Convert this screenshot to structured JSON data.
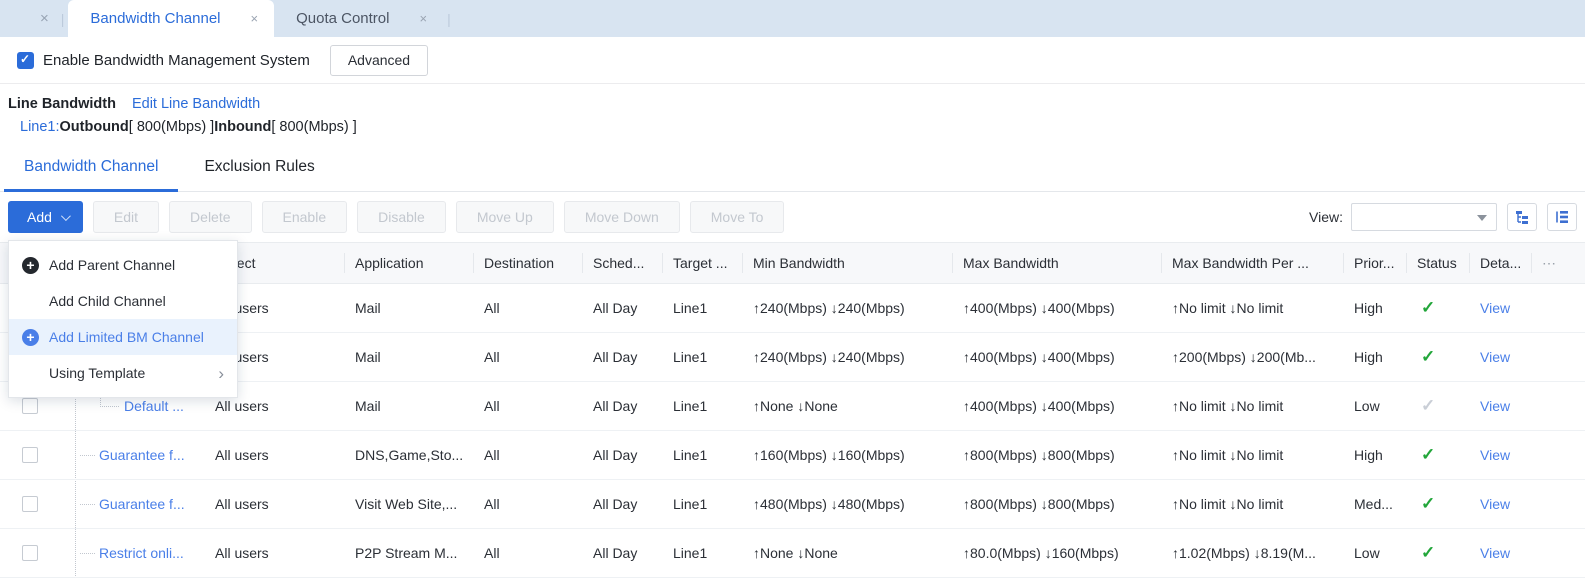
{
  "window_tabs": {
    "close_icon": "×",
    "separator": "|",
    "tabs": [
      {
        "label": "Bandwidth Channel",
        "active": true
      },
      {
        "label": "Quota Control",
        "active": false
      }
    ]
  },
  "header": {
    "enable_label": "Enable Bandwidth Management System",
    "enable_checked": true,
    "advanced_button": "Advanced",
    "line_bandwidth_title": "Line Bandwidth",
    "edit_line_bandwidth_link": "Edit Line Bandwidth",
    "line": {
      "name": "Line1:",
      "outbound_label": "Outbound",
      "outbound_value": "[ 800(Mbps) ]",
      "inbound_label": "Inbound",
      "inbound_value": "[ 800(Mbps) ]"
    }
  },
  "section_tabs": [
    {
      "label": "Bandwidth Channel",
      "active": true
    },
    {
      "label": "Exclusion Rules",
      "active": false
    }
  ],
  "toolbar": {
    "add_label": "Add",
    "buttons": [
      "Edit",
      "Delete",
      "Enable",
      "Disable",
      "Move Up",
      "Move Down",
      "Move To"
    ],
    "view_label": "View:",
    "view_value": ""
  },
  "add_menu": {
    "items": [
      {
        "label": "Add Parent Channel",
        "icon": "plus-circle-dark",
        "highlighted": false,
        "submenu": false
      },
      {
        "label": "Add Child Channel",
        "icon": null,
        "highlighted": false,
        "submenu": false
      },
      {
        "label": "Add Limited BM Channel",
        "icon": "plus-circle-blue",
        "highlighted": true,
        "submenu": false
      },
      {
        "label": "Using Template",
        "icon": null,
        "highlighted": false,
        "submenu": true
      }
    ],
    "submenu_arrow": "›"
  },
  "table": {
    "columns": [
      {
        "key": "select",
        "label": ""
      },
      {
        "key": "name",
        "label": ""
      },
      {
        "key": "object",
        "label": "Object"
      },
      {
        "key": "application",
        "label": "Application"
      },
      {
        "key": "destination",
        "label": "Destination"
      },
      {
        "key": "schedule",
        "label": "Sched..."
      },
      {
        "key": "target",
        "label": "Target ..."
      },
      {
        "key": "min",
        "label": "Min Bandwidth"
      },
      {
        "key": "max",
        "label": "Max Bandwidth"
      },
      {
        "key": "per_user",
        "label": "Max Bandwidth Per ..."
      },
      {
        "key": "priority",
        "label": "Prior..."
      },
      {
        "key": "status",
        "label": "Status"
      },
      {
        "key": "detail",
        "label": "Deta..."
      },
      {
        "key": "more",
        "label": "⋯"
      }
    ],
    "rows": [
      {
        "name": "",
        "level": 1,
        "object": "All users",
        "application": "Mail",
        "destination": "All",
        "schedule": "All Day",
        "target": "Line1",
        "min": "↑240(Mbps) ↓240(Mbps)",
        "max": "↑400(Mbps) ↓400(Mbps)",
        "per_user": "↑No limit ↓No limit",
        "priority": "High",
        "status": "enabled",
        "detail": "View"
      },
      {
        "name": "",
        "level": 1,
        "object": "All users",
        "application": "Mail",
        "destination": "All",
        "schedule": "All Day",
        "target": "Line1",
        "min": "↑240(Mbps) ↓240(Mbps)",
        "max": "↑400(Mbps) ↓400(Mbps)",
        "per_user": "↑200(Mbps) ↓200(Mb...",
        "priority": "High",
        "status": "enabled",
        "detail": "View"
      },
      {
        "name": "Default ...",
        "level": 2,
        "object": "All users",
        "application": "Mail",
        "destination": "All",
        "schedule": "All Day",
        "target": "Line1",
        "min": "↑None ↓None",
        "max": "↑400(Mbps) ↓400(Mbps)",
        "per_user": "↑No limit ↓No limit",
        "priority": "Low",
        "status": "disabled",
        "detail": "View"
      },
      {
        "name": "Guarantee f...",
        "level": 1,
        "object": "All users",
        "application": "DNS,Game,Sto...",
        "destination": "All",
        "schedule": "All Day",
        "target": "Line1",
        "min": "↑160(Mbps) ↓160(Mbps)",
        "max": "↑800(Mbps) ↓800(Mbps)",
        "per_user": "↑No limit ↓No limit",
        "priority": "High",
        "status": "enabled",
        "detail": "View"
      },
      {
        "name": "Guarantee f...",
        "level": 1,
        "object": "All users",
        "application": "Visit Web Site,...",
        "destination": "All",
        "schedule": "All Day",
        "target": "Line1",
        "min": "↑480(Mbps) ↓480(Mbps)",
        "max": "↑800(Mbps) ↓800(Mbps)",
        "per_user": "↑No limit ↓No limit",
        "priority": "Med...",
        "status": "enabled",
        "detail": "View"
      },
      {
        "name": "Restrict onli...",
        "level": 1,
        "object": "All users",
        "application": "P2P Stream M...",
        "destination": "All",
        "schedule": "All Day",
        "target": "Line1",
        "min": "↑None ↓None",
        "max": "↑80.0(Mbps) ↓160(Mbps)",
        "per_user": "↑1.02(Mbps) ↓8.19(M...",
        "priority": "Low",
        "status": "enabled",
        "detail": "View"
      }
    ],
    "status_check_glyph": "✓"
  },
  "colors": {
    "accent_blue": "#2b6cd9",
    "link_blue": "#4a7fe8",
    "tabbar_background": "#d8e4f1",
    "check_green": "#22a63a",
    "check_gray": "#c9ced6"
  }
}
